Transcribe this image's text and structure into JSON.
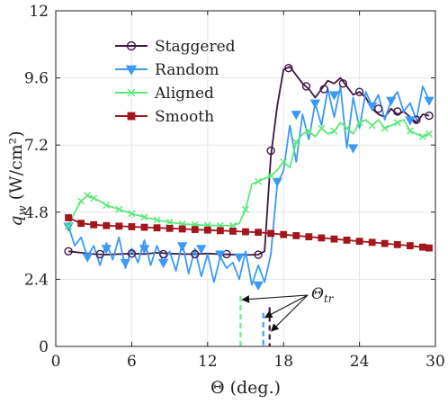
{
  "chart_data": {
    "type": "line",
    "xlabel": "Θ (deg.)",
    "ylabel": "q_w (W/cm²)",
    "xlim": [
      0,
      30
    ],
    "ylim": [
      0,
      12
    ],
    "xticks": [
      0,
      6,
      12,
      18,
      24,
      30
    ],
    "yticks": [
      0,
      2.4,
      4.8,
      7.2,
      9.6,
      12
    ],
    "xtick_labels": [
      "0",
      "6",
      "12",
      "18",
      "24",
      "30"
    ],
    "ytick_labels": [
      "0",
      "2.4",
      "4.8",
      "7.2",
      "9.6",
      "12"
    ],
    "grid": true,
    "legend_position": "top-left",
    "annotation": "Θ_tr",
    "transition_markers": [
      {
        "series": "Aligned",
        "x": 14.6,
        "y_top": 1.8,
        "color": "#66ee7f"
      },
      {
        "series": "Random",
        "x": 16.4,
        "y_top": 1.2,
        "color": "#3f9fff"
      },
      {
        "series": "Staggered",
        "x": 16.9,
        "y_top": 1.4,
        "color": "#4a1746"
      }
    ],
    "series": [
      {
        "name": "Staggered",
        "color": "#3f1745",
        "marker": "circle",
        "x": [
          1,
          2,
          3,
          4,
          5,
          6,
          7,
          8,
          9,
          10,
          11,
          12,
          13,
          14,
          15,
          16,
          16.5,
          17,
          17.5,
          18,
          18.5,
          19,
          19.5,
          20,
          20.5,
          21,
          21.5,
          22,
          22.5,
          23,
          23.5,
          24,
          24.5,
          25,
          25.5,
          26,
          26.5,
          27,
          27.5,
          28,
          28.5,
          29,
          29.5
        ],
        "y": [
          3.4,
          3.35,
          3.3,
          3.28,
          3.3,
          3.32,
          3.3,
          3.35,
          3.32,
          3.3,
          3.3,
          3.32,
          3.3,
          3.28,
          3.27,
          3.28,
          3.4,
          6.8,
          8.6,
          9.9,
          10.0,
          9.7,
          9.4,
          9.2,
          8.9,
          9.2,
          9.5,
          9.4,
          9.6,
          9.3,
          9.0,
          9.1,
          8.9,
          8.5,
          8.3,
          8.2,
          8.5,
          8.3,
          8.4,
          8.2,
          8.0,
          8.3,
          8.25
        ],
        "marker_x": [
          1,
          3.5,
          6,
          8.5,
          11,
          13.5,
          16,
          17,
          18.4,
          19.8,
          21.2,
          22.7,
          24,
          25.5,
          27,
          28.5,
          29.5
        ],
        "marker_y": [
          3.4,
          3.3,
          3.32,
          3.3,
          3.3,
          3.3,
          3.28,
          7.0,
          9.95,
          9.3,
          9.2,
          9.4,
          9.1,
          8.5,
          8.4,
          8.1,
          8.25
        ]
      },
      {
        "name": "Random",
        "color": "#3a9af5",
        "marker": "triangle-down",
        "x": [
          1,
          1.5,
          2,
          2.5,
          3,
          3.5,
          4,
          4.5,
          5,
          5.5,
          6,
          6.5,
          7,
          7.5,
          8,
          8.5,
          9,
          9.5,
          10,
          10.5,
          11,
          11.5,
          12,
          12.5,
          13,
          13.5,
          14,
          14.5,
          15,
          15.5,
          16,
          16.5,
          17,
          17.5,
          18,
          18.5,
          19,
          19.5,
          20,
          20.5,
          21,
          21.5,
          22,
          22.5,
          23,
          23.5,
          24,
          24.5,
          25,
          25.5,
          26,
          26.5,
          27,
          27.5,
          28,
          28.5,
          29,
          29.5
        ],
        "y": [
          4.3,
          3.6,
          3.9,
          3.2,
          3.6,
          2.9,
          3.7,
          3.1,
          3.9,
          2.8,
          3.5,
          3.0,
          3.8,
          2.9,
          3.6,
          3.0,
          3.4,
          2.7,
          3.7,
          2.6,
          3.5,
          2.5,
          3.3,
          2.3,
          3.2,
          2.8,
          3.0,
          2.4,
          3.4,
          2.2,
          2.9,
          2.3,
          3.3,
          5.8,
          6.3,
          7.9,
          6.6,
          8.3,
          7.4,
          8.7,
          7.9,
          9.2,
          8.2,
          9.3,
          7.1,
          8.9,
          7.8,
          9.1,
          8.6,
          9.0,
          8.1,
          8.8,
          9.1,
          8.4,
          8.7,
          8.1,
          9.3,
          8.8
        ],
        "marker_x": [
          1,
          2.5,
          4,
          5.5,
          7,
          8.5,
          10,
          11.5,
          13,
          14.5,
          16,
          17.5,
          19,
          20.5,
          22,
          23.5,
          25,
          26.5,
          28,
          29.5
        ],
        "marker_y": [
          4.3,
          3.2,
          3.5,
          3.0,
          3.5,
          3.0,
          3.6,
          3.5,
          3.3,
          3.2,
          2.2,
          5.9,
          8.3,
          8.7,
          9.0,
          7.1,
          8.6,
          8.8,
          8.1,
          8.8
        ]
      },
      {
        "name": "Aligned",
        "color": "#5de97a",
        "marker": "x",
        "x": [
          1,
          1.5,
          2,
          2.5,
          3,
          3.5,
          4,
          5,
          6,
          7,
          8,
          9,
          10,
          11,
          12,
          13,
          14,
          14.5,
          15,
          15.5,
          16,
          16.5,
          17,
          17.5,
          18,
          18.5,
          19,
          19.5,
          20,
          20.5,
          21,
          21.5,
          22,
          22.5,
          23,
          23.5,
          24,
          24.5,
          25,
          25.5,
          26,
          26.5,
          27,
          27.5,
          28,
          28.5,
          29,
          29.5
        ],
        "y": [
          4.3,
          4.8,
          5.2,
          5.4,
          5.3,
          5.2,
          5.05,
          4.9,
          4.75,
          4.62,
          4.52,
          4.44,
          4.38,
          4.35,
          4.33,
          4.32,
          4.32,
          4.4,
          4.9,
          5.8,
          5.9,
          6.0,
          6.1,
          6.3,
          6.6,
          6.4,
          7.3,
          7.6,
          7.7,
          7.5,
          7.8,
          7.6,
          7.7,
          8.0,
          7.8,
          7.6,
          8.0,
          8.1,
          7.9,
          8.1,
          7.8,
          7.9,
          8.0,
          8.1,
          7.7,
          7.6,
          7.5,
          7.6
        ],
        "marker_x": [
          1,
          2,
          2.5,
          3,
          4,
          5,
          6,
          7,
          8,
          9,
          10,
          11,
          12,
          13,
          14,
          15,
          16,
          17,
          18,
          19,
          20,
          21,
          22,
          23,
          24,
          25,
          26,
          27,
          28,
          29,
          29.5
        ],
        "marker_y": [
          4.3,
          5.2,
          5.4,
          5.3,
          5.05,
          4.9,
          4.75,
          4.62,
          4.52,
          4.44,
          4.38,
          4.35,
          4.33,
          4.32,
          4.32,
          4.9,
          5.9,
          6.1,
          6.6,
          7.3,
          7.7,
          7.8,
          7.7,
          7.8,
          8.0,
          7.9,
          7.8,
          8.0,
          7.7,
          7.5,
          7.6
        ]
      },
      {
        "name": "Smooth",
        "color": "#a3161d",
        "marker": "square",
        "x": [
          1,
          2,
          3,
          4,
          5,
          6,
          7,
          8,
          9,
          10,
          11,
          12,
          13,
          14,
          15,
          16,
          17,
          18,
          19,
          20,
          21,
          22,
          23,
          24,
          25,
          26,
          27,
          28,
          29,
          29.5
        ],
        "y": [
          4.6,
          4.4,
          4.35,
          4.32,
          4.3,
          4.28,
          4.26,
          4.24,
          4.22,
          4.2,
          4.18,
          4.16,
          4.14,
          4.12,
          4.1,
          4.08,
          4.04,
          4.0,
          3.96,
          3.92,
          3.88,
          3.84,
          3.8,
          3.76,
          3.72,
          3.68,
          3.64,
          3.6,
          3.55,
          3.52
        ],
        "marker_x": [
          1,
          2,
          3,
          4,
          5,
          6,
          7,
          8,
          9,
          10,
          11,
          12,
          13,
          14,
          15,
          16,
          17,
          18,
          19,
          20,
          21,
          22,
          23,
          24,
          25,
          26,
          27,
          28,
          29,
          29.5
        ],
        "marker_y": [
          4.6,
          4.4,
          4.35,
          4.32,
          4.3,
          4.28,
          4.26,
          4.24,
          4.22,
          4.2,
          4.18,
          4.16,
          4.14,
          4.12,
          4.1,
          4.08,
          4.04,
          4.0,
          3.96,
          3.92,
          3.88,
          3.84,
          3.8,
          3.76,
          3.72,
          3.68,
          3.64,
          3.6,
          3.55,
          3.52
        ]
      }
    ]
  }
}
